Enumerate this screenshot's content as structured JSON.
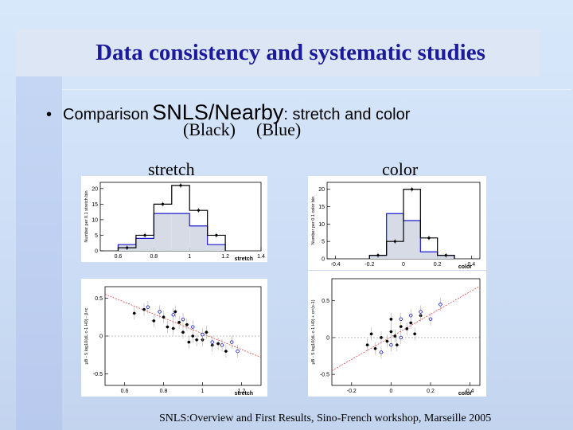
{
  "title": "Data consistency and systematic studies",
  "bullet": {
    "prefix": "Comparison",
    "dataset_a": "SNLS",
    "separator": "/",
    "dataset_b": "Nearby",
    "suffix": ": stretch and color"
  },
  "legend_notes": {
    "black": "(Black)",
    "blue": "(Blue)"
  },
  "panel_labels": {
    "stretch": "stretch",
    "color": "color"
  },
  "colors": {
    "title": "#1a1a9a",
    "series_black": "#000000",
    "series_blue": "#1b1bd0",
    "fit_line": "#dd4444",
    "hist_fill": "#d6dbe6"
  },
  "footer": "SNLS:Overview and First Results, Sino-French workshop, Marseille 2005",
  "chart_data": [
    {
      "type": "bar",
      "panel": "stretch histogram",
      "xlabel": "stretch",
      "ylabel": "Number per 0.1 stretch bin",
      "xlim": [
        0.5,
        1.4
      ],
      "ylim": [
        0,
        22
      ],
      "xticks": [
        0.6,
        0.8,
        1,
        1.2,
        1.4
      ],
      "yticks": [
        0,
        5,
        10,
        15,
        20
      ],
      "bin_edges": [
        0.6,
        0.7,
        0.8,
        0.9,
        1.0,
        1.1,
        1.2
      ],
      "series": [
        {
          "color": "black",
          "values": [
            1,
            5,
            15,
            21,
            13,
            5
          ]
        },
        {
          "color": "blue",
          "values": [
            2,
            4,
            12,
            12,
            8,
            2
          ]
        }
      ]
    },
    {
      "type": "bar",
      "panel": "color histogram",
      "xlabel": "color",
      "ylabel": "Number per 0.1 color bin",
      "xlim": [
        -0.45,
        0.45
      ],
      "ylim": [
        0,
        22
      ],
      "xticks": [
        -0.4,
        -0.2,
        0,
        0.2,
        0.4
      ],
      "yticks": [
        0,
        5,
        10,
        15,
        20
      ],
      "bin_edges": [
        -0.2,
        -0.1,
        0.0,
        0.1,
        0.2,
        0.3
      ],
      "series": [
        {
          "color": "black",
          "values": [
            1,
            5,
            20,
            6,
            1
          ]
        },
        {
          "color": "blue",
          "values": [
            1,
            13,
            11,
            2,
            1
          ]
        }
      ]
    },
    {
      "type": "scatter",
      "panel": "stretch residuals",
      "xlabel": "stretch",
      "ylabel": "μB - 5 log10(dL c-1 H0) - β×c",
      "xlim": [
        0.5,
        1.3
      ],
      "ylim": [
        -0.65,
        0.65
      ],
      "xticks": [
        0.6,
        0.8,
        1,
        1.2
      ],
      "yticks": [
        -0.5,
        0,
        0.5
      ],
      "fit_line": [
        [
          0.5,
          0.55
        ],
        [
          1.3,
          -0.28
        ]
      ],
      "series": [
        {
          "color": "black",
          "points": [
            [
              0.65,
              0.3
            ],
            [
              0.7,
              0.35
            ],
            [
              0.75,
              0.2
            ],
            [
              0.8,
              0.25
            ],
            [
              0.82,
              0.12
            ],
            [
              0.85,
              0.1
            ],
            [
              0.88,
              0.18
            ],
            [
              0.9,
              0.05
            ],
            [
              0.92,
              0.15
            ],
            [
              0.95,
              0.0
            ],
            [
              0.97,
              -0.05
            ],
            [
              1.0,
              -0.05
            ],
            [
              1.02,
              0.05
            ],
            [
              1.05,
              -0.12
            ],
            [
              1.08,
              -0.1
            ],
            [
              0.86,
              0.32
            ],
            [
              0.93,
              -0.08
            ],
            [
              1.12,
              -0.2
            ]
          ]
        },
        {
          "color": "blue",
          "points": [
            [
              0.72,
              0.38
            ],
            [
              0.78,
              0.32
            ],
            [
              0.85,
              0.28
            ],
            [
              0.9,
              0.22
            ],
            [
              0.95,
              0.12
            ],
            [
              1.0,
              0.02
            ],
            [
              1.05,
              -0.08
            ],
            [
              1.1,
              -0.12
            ],
            [
              1.15,
              -0.08
            ],
            [
              1.18,
              -0.2
            ]
          ]
        }
      ]
    },
    {
      "type": "scatter",
      "panel": "color residuals",
      "xlabel": "color",
      "ylabel": "μB - 5 log10(dL c-1 H0) + α×(s-1)",
      "xlim": [
        -0.3,
        0.45
      ],
      "ylim": [
        -0.65,
        0.8
      ],
      "xticks": [
        -0.2,
        0,
        0.2,
        0.4
      ],
      "yticks": [
        -0.5,
        0,
        0.5
      ],
      "fit_line": [
        [
          -0.3,
          -0.45
        ],
        [
          0.45,
          0.7
        ]
      ],
      "series": [
        {
          "color": "black",
          "points": [
            [
              -0.12,
              -0.1
            ],
            [
              -0.05,
              0.0
            ],
            [
              -0.02,
              -0.05
            ],
            [
              0.0,
              0.08
            ],
            [
              0.02,
              0.02
            ],
            [
              0.05,
              0.15
            ],
            [
              0.08,
              0.12
            ],
            [
              0.1,
              0.2
            ],
            [
              -0.08,
              -0.15
            ],
            [
              0.03,
              -0.1
            ],
            [
              0.12,
              0.05
            ],
            [
              0.15,
              0.3
            ],
            [
              0.0,
              0.25
            ],
            [
              -0.1,
              0.05
            ]
          ]
        },
        {
          "color": "blue",
          "points": [
            [
              -0.05,
              -0.2
            ],
            [
              0.0,
              -0.1
            ],
            [
              0.05,
              0.0
            ],
            [
              0.1,
              0.3
            ],
            [
              0.15,
              0.35
            ],
            [
              0.2,
              0.25
            ],
            [
              0.25,
              0.45
            ],
            [
              0.05,
              0.25
            ]
          ]
        }
      ]
    }
  ]
}
